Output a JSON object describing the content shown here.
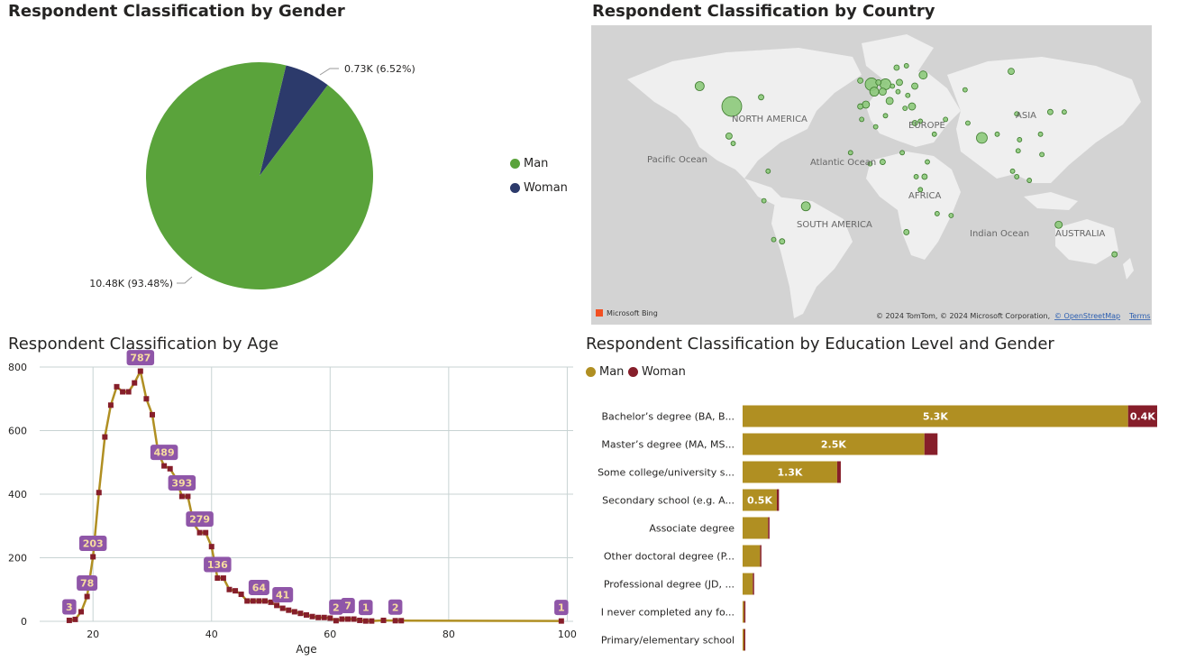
{
  "colors": {
    "man_pie": "#5aa33b",
    "woman_pie": "#2c3a6b",
    "man_bar": "#b08f22",
    "woman_bar": "#861e2a",
    "age_line": "#b08f22",
    "age_marker": "#861e2a",
    "age_label_bg": "#8f56a8",
    "age_label_text": "#f6dca0",
    "map_land": "#efefef",
    "map_water": "#d3d3d3",
    "map_bubble": "#8cc97a"
  },
  "gender": {
    "title": "Respondent Classification by Gender",
    "legend": [
      "Man",
      "Woman"
    ],
    "label_man": "10.48K (93.48%)",
    "label_woman": "0.73K (6.52%)"
  },
  "country": {
    "title": "Respondent Classification by Country",
    "labels": {
      "north_america": "NORTH AMERICA",
      "pacific": "Pacific Ocean",
      "atlantic": "Atlantic Ocean",
      "europe": "EUROPE",
      "asia": "ASIA",
      "africa": "AFRICA",
      "south_america": "SOUTH AMERICA",
      "indian": "Indian Ocean",
      "australia": "AUSTRALIA"
    },
    "attribution": "© 2024 TomTom, © 2024 Microsoft Corporation,",
    "osm_link": "© OpenStreetMap",
    "terms_link": "Terms",
    "brand": "Microsoft Bing"
  },
  "age": {
    "title": "Respondent Classification by Age",
    "xlabel": "Age"
  },
  "education": {
    "title": "Respondent Classification by Education Level and Gender",
    "legend": [
      "Man",
      "Woman"
    ]
  },
  "chart_data": [
    {
      "type": "pie",
      "title": "Respondent Classification by Gender",
      "labels": [
        "Man",
        "Woman"
      ],
      "values": [
        10480,
        730
      ],
      "percentages": [
        93.48,
        6.52
      ],
      "legend": "right"
    },
    {
      "type": "scatter",
      "title": "Respondent Classification by Country",
      "description_note": "bubble map",
      "points": [
        {
          "lon": -100,
          "lat": 39,
          "size": 11
        },
        {
          "lon": -79,
          "lat": 44,
          "size": 3
        },
        {
          "lon": -123,
          "lat": 50,
          "size": 5
        },
        {
          "lon": -102,
          "lat": 23,
          "size": 3.5
        },
        {
          "lon": -99,
          "lat": 19,
          "size": 2.5
        },
        {
          "lon": -47,
          "lat": -15,
          "size": 5
        },
        {
          "lon": -70,
          "lat": -33,
          "size": 2.5
        },
        {
          "lon": -64,
          "lat": -34,
          "size": 3
        },
        {
          "lon": -74,
          "lat": 4,
          "size": 2.5
        },
        {
          "lon": -77,
          "lat": -12,
          "size": 2.5
        },
        {
          "lon": 0,
          "lat": 51,
          "size": 7
        },
        {
          "lon": 10,
          "lat": 51,
          "size": 6
        },
        {
          "lon": 2,
          "lat": 47,
          "size": 5
        },
        {
          "lon": 8,
          "lat": 47,
          "size": 4
        },
        {
          "lon": 13,
          "lat": 42,
          "size": 4
        },
        {
          "lon": -4,
          "lat": 40,
          "size": 4
        },
        {
          "lon": 20,
          "lat": 52,
          "size": 3.5
        },
        {
          "lon": 31,
          "lat": 50,
          "size": 3.5
        },
        {
          "lon": 18,
          "lat": 60,
          "size": 3
        },
        {
          "lon": 25,
          "lat": 61,
          "size": 2.5
        },
        {
          "lon": 37,
          "lat": 56,
          "size": 4.5
        },
        {
          "lon": 29,
          "lat": 39,
          "size": 4
        },
        {
          "lon": 24,
          "lat": 38,
          "size": 2.5
        },
        {
          "lon": 26,
          "lat": 45,
          "size": 2.5
        },
        {
          "lon": 19,
          "lat": 47,
          "size": 2.5
        },
        {
          "lon": 5,
          "lat": 52,
          "size": 3
        },
        {
          "lon": 15,
          "lat": 50,
          "size": 2.5
        },
        {
          "lon": -8,
          "lat": 39,
          "size": 3
        },
        {
          "lon": -8,
          "lat": 53,
          "size": 3
        },
        {
          "lon": 35,
          "lat": 31,
          "size": 2.5
        },
        {
          "lon": 31,
          "lat": 30,
          "size": 3
        },
        {
          "lon": 45,
          "lat": 24,
          "size": 2.5
        },
        {
          "lon": 53,
          "lat": 32,
          "size": 2.5
        },
        {
          "lon": 69,
          "lat": 30,
          "size": 2.5
        },
        {
          "lon": 79,
          "lat": 22,
          "size": 6
        },
        {
          "lon": 90,
          "lat": 24,
          "size": 2.5
        },
        {
          "lon": 104,
          "lat": 35,
          "size": 2.5
        },
        {
          "lon": 128,
          "lat": 36,
          "size": 3
        },
        {
          "lon": 138,
          "lat": 36,
          "size": 2.5
        },
        {
          "lon": 121,
          "lat": 24,
          "size": 2.5
        },
        {
          "lon": 105,
          "lat": 15,
          "size": 2.5
        },
        {
          "lon": 106,
          "lat": 21,
          "size": 2.5
        },
        {
          "lon": 101,
          "lat": 4,
          "size": 2.5
        },
        {
          "lon": 104,
          "lat": 1,
          "size": 2.5
        },
        {
          "lon": 113,
          "lat": -1,
          "size": 2.5
        },
        {
          "lon": 122,
          "lat": 13,
          "size": 2.5
        },
        {
          "lon": 100,
          "lat": 58,
          "size": 3.5
        },
        {
          "lon": 67,
          "lat": 48,
          "size": 2.5
        },
        {
          "lon": 134,
          "lat": -25,
          "size": 4
        },
        {
          "lon": 174,
          "lat": -41,
          "size": 3
        },
        {
          "lon": 8,
          "lat": 9,
          "size": 3
        },
        {
          "lon": -1,
          "lat": 8,
          "size": 2.5
        },
        {
          "lon": -15,
          "lat": 14,
          "size": 2.5
        },
        {
          "lon": 38,
          "lat": 1,
          "size": 3
        },
        {
          "lon": 40,
          "lat": 9,
          "size": 2.5
        },
        {
          "lon": 32,
          "lat": 1,
          "size": 2.5
        },
        {
          "lon": 35,
          "lat": -6,
          "size": 2.5
        },
        {
          "lon": 25,
          "lat": -29,
          "size": 3
        },
        {
          "lon": 47,
          "lat": -19,
          "size": 2.5
        },
        {
          "lon": 3,
          "lat": 28,
          "size": 2.5
        },
        {
          "lon": -7,
          "lat": 32,
          "size": 2.5
        },
        {
          "lon": 10,
          "lat": 34,
          "size": 2.5
        },
        {
          "lon": 57,
          "lat": -20,
          "size": 2.5
        },
        {
          "lon": 22,
          "lat": 14,
          "size": 2.5
        }
      ]
    },
    {
      "type": "line",
      "title": "Respondent Classification by Age",
      "xlabel": "Age",
      "ylabel": "",
      "xlim": [
        11,
        101
      ],
      "ylim": [
        0,
        800
      ],
      "xticks": [
        20,
        40,
        60,
        80,
        100
      ],
      "yticks": [
        0,
        200,
        400,
        600,
        800
      ],
      "grid": true,
      "x": [
        16,
        17,
        18,
        19,
        20,
        21,
        22,
        23,
        24,
        25,
        26,
        27,
        28,
        29,
        30,
        31,
        32,
        33,
        34,
        35,
        36,
        37,
        38,
        39,
        40,
        41,
        42,
        43,
        44,
        45,
        46,
        47,
        48,
        49,
        50,
        51,
        52,
        53,
        54,
        55,
        56,
        57,
        58,
        59,
        60,
        61,
        62,
        63,
        64,
        65,
        66,
        67,
        69,
        71,
        72,
        99
      ],
      "y": [
        3,
        6,
        30,
        78,
        203,
        405,
        580,
        680,
        738,
        722,
        722,
        750,
        787,
        700,
        650,
        530,
        489,
        480,
        450,
        393,
        393,
        307,
        279,
        279,
        235,
        136,
        136,
        100,
        96,
        85,
        64,
        64,
        64,
        64,
        60,
        50,
        41,
        35,
        30,
        25,
        20,
        15,
        12,
        12,
        10,
        2,
        7,
        7,
        7,
        3,
        1,
        1,
        3,
        2,
        2,
        1
      ],
      "data_labels": [
        {
          "x": 16,
          "y": 3,
          "label": "3"
        },
        {
          "x": 19,
          "y": 78,
          "label": "78"
        },
        {
          "x": 20,
          "y": 203,
          "label": "203"
        },
        {
          "x": 28,
          "y": 787,
          "label": "787"
        },
        {
          "x": 32,
          "y": 489,
          "label": "489"
        },
        {
          "x": 35,
          "y": 393,
          "label": "393"
        },
        {
          "x": 38,
          "y": 279,
          "label": "279"
        },
        {
          "x": 41,
          "y": 136,
          "label": "136"
        },
        {
          "x": 48,
          "y": 64,
          "label": "64"
        },
        {
          "x": 52,
          "y": 41,
          "label": "41"
        },
        {
          "x": 61,
          "y": 2,
          "label": "2"
        },
        {
          "x": 63,
          "y": 7,
          "label": "7"
        },
        {
          "x": 66,
          "y": 1,
          "label": "1"
        },
        {
          "x": 71,
          "y": 2,
          "label": "2"
        },
        {
          "x": 99,
          "y": 1,
          "label": "1"
        }
      ]
    },
    {
      "type": "bar",
      "orientation": "horizontal",
      "stacked": true,
      "title": "Respondent Classification by Education Level and Gender",
      "legend": "top-left",
      "categories": [
        "Bachelor’s degree (BA, B...",
        "Master’s degree (MA, MS...",
        "Some college/university s...",
        "Secondary school (e.g. A...",
        "Associate degree",
        "Other doctoral degree (P...",
        "Professional degree (JD, ...",
        "I never completed any fo...",
        "Primary/elementary school"
      ],
      "series": [
        {
          "name": "Man",
          "values": [
            5300,
            2500,
            1300,
            470,
            350,
            240,
            140,
            20,
            15
          ],
          "labels": [
            "5.3K",
            "2.5K",
            "1.3K",
            "0.5K",
            "",
            "",
            "",
            "",
            ""
          ]
        },
        {
          "name": "Woman",
          "values": [
            400,
            180,
            50,
            30,
            20,
            10,
            5,
            2,
            2
          ],
          "labels": [
            "0.4K",
            "",
            "",
            "",
            "",
            "",
            "",
            "",
            ""
          ]
        }
      ],
      "xlim": [
        0,
        5700
      ]
    }
  ]
}
